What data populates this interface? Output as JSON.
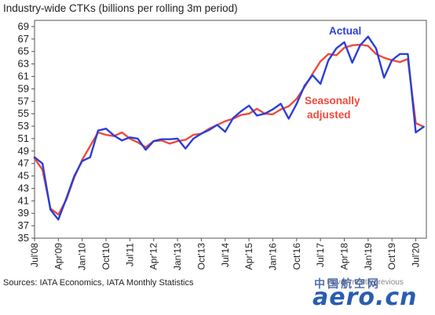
{
  "chart_data": {
    "type": "line",
    "title": "Industry-wide CTKs (billions per rolling 3m period)",
    "ylim": [
      35,
      70
    ],
    "y_ticks": [
      35,
      37,
      39,
      41,
      43,
      45,
      47,
      49,
      51,
      53,
      55,
      57,
      59,
      61,
      63,
      65,
      67,
      69
    ],
    "x_tick_labels": [
      "Jul'08",
      "Apr'09",
      "Jan'10",
      "Oct'10",
      "Jul'11",
      "Apr'12",
      "Jan'13",
      "Oct'13",
      "Jul'14",
      "Apr'15",
      "Jan'16",
      "Oct'16",
      "Jul'17",
      "Apr'18",
      "Jan'19",
      "Oct'19",
      "Jul'20"
    ],
    "x_tick_positions": [
      0,
      9,
      18,
      27,
      36,
      45,
      54,
      63,
      72,
      81,
      90,
      99,
      108,
      117,
      126,
      135,
      144
    ],
    "grid": false,
    "series": [
      {
        "name": "Actual",
        "color": "#2a3fd6",
        "points": [
          [
            0,
            48
          ],
          [
            3,
            47
          ],
          [
            6,
            39.6
          ],
          [
            9,
            38
          ],
          [
            12,
            41.4
          ],
          [
            15,
            45
          ],
          [
            18,
            47.4
          ],
          [
            21,
            48
          ],
          [
            24,
            52.3
          ],
          [
            27,
            52.6
          ],
          [
            30,
            51.5
          ],
          [
            33,
            50.7
          ],
          [
            36,
            51.2
          ],
          [
            39,
            51
          ],
          [
            42,
            49.2
          ],
          [
            45,
            50.6
          ],
          [
            48,
            50.9
          ],
          [
            51,
            50.9
          ],
          [
            54,
            51
          ],
          [
            57,
            49.4
          ],
          [
            60,
            51
          ],
          [
            63,
            51.8
          ],
          [
            66,
            52.4
          ],
          [
            69,
            53.2
          ],
          [
            72,
            52.1
          ],
          [
            75,
            54.3
          ],
          [
            78,
            55.4
          ],
          [
            81,
            56.3
          ],
          [
            84,
            54.7
          ],
          [
            87,
            55
          ],
          [
            90,
            55.7
          ],
          [
            93,
            56.6
          ],
          [
            96,
            54.2
          ],
          [
            99,
            56.6
          ],
          [
            102,
            59.5
          ],
          [
            105,
            61.2
          ],
          [
            108,
            59.8
          ],
          [
            111,
            63.6
          ],
          [
            114,
            65.5
          ],
          [
            117,
            66.5
          ],
          [
            120,
            63.2
          ],
          [
            123,
            66
          ],
          [
            126,
            67.4
          ],
          [
            129,
            65.5
          ],
          [
            132,
            60.8
          ],
          [
            135,
            63.6
          ],
          [
            138,
            64.6
          ],
          [
            141,
            64.6
          ],
          [
            144,
            52
          ],
          [
            147,
            52.9
          ]
        ]
      },
      {
        "name": "Seasonally adjusted",
        "color": "#f04a3c",
        "points": [
          [
            0,
            47.8
          ],
          [
            3,
            46
          ],
          [
            6,
            39.8
          ],
          [
            9,
            38.8
          ],
          [
            12,
            41.2
          ],
          [
            15,
            44.8
          ],
          [
            18,
            47.6
          ],
          [
            21,
            49.8
          ],
          [
            24,
            52
          ],
          [
            27,
            51.6
          ],
          [
            30,
            51.4
          ],
          [
            33,
            52
          ],
          [
            36,
            51
          ],
          [
            39,
            50.4
          ],
          [
            42,
            49.6
          ],
          [
            45,
            50.6
          ],
          [
            48,
            50.7
          ],
          [
            51,
            50.2
          ],
          [
            54,
            50.6
          ],
          [
            57,
            50.8
          ],
          [
            60,
            51.6
          ],
          [
            63,
            51.8
          ],
          [
            66,
            52.6
          ],
          [
            69,
            53.2
          ],
          [
            72,
            53.8
          ],
          [
            75,
            54.2
          ],
          [
            78,
            54.8
          ],
          [
            81,
            55
          ],
          [
            84,
            55.8
          ],
          [
            87,
            55
          ],
          [
            90,
            54.9
          ],
          [
            93,
            55.7
          ],
          [
            96,
            56.2
          ],
          [
            99,
            57.4
          ],
          [
            102,
            59.3
          ],
          [
            105,
            61.4
          ],
          [
            108,
            63.4
          ],
          [
            111,
            64.6
          ],
          [
            114,
            64.4
          ],
          [
            117,
            65.6
          ],
          [
            120,
            66
          ],
          [
            123,
            66.1
          ],
          [
            126,
            65.9
          ],
          [
            129,
            64.6
          ],
          [
            132,
            64
          ],
          [
            135,
            63.6
          ],
          [
            138,
            63.3
          ],
          [
            141,
            63.8
          ],
          [
            144,
            53.5
          ],
          [
            147,
            52.9
          ]
        ]
      }
    ],
    "annotations": [
      {
        "text": "Actual",
        "series": "Actual"
      },
      {
        "text": "Seasonally",
        "series": "Seasonally adjusted"
      },
      {
        "text": "adjusted",
        "series": "Seasonally adjusted"
      }
    ]
  },
  "footer": {
    "source": "Sources: IATA Economics, IATA Monthly Statistics",
    "watermark": "Haver month previous"
  },
  "logo": {
    "cn": "中国航空网",
    "text": "aero.cn"
  }
}
